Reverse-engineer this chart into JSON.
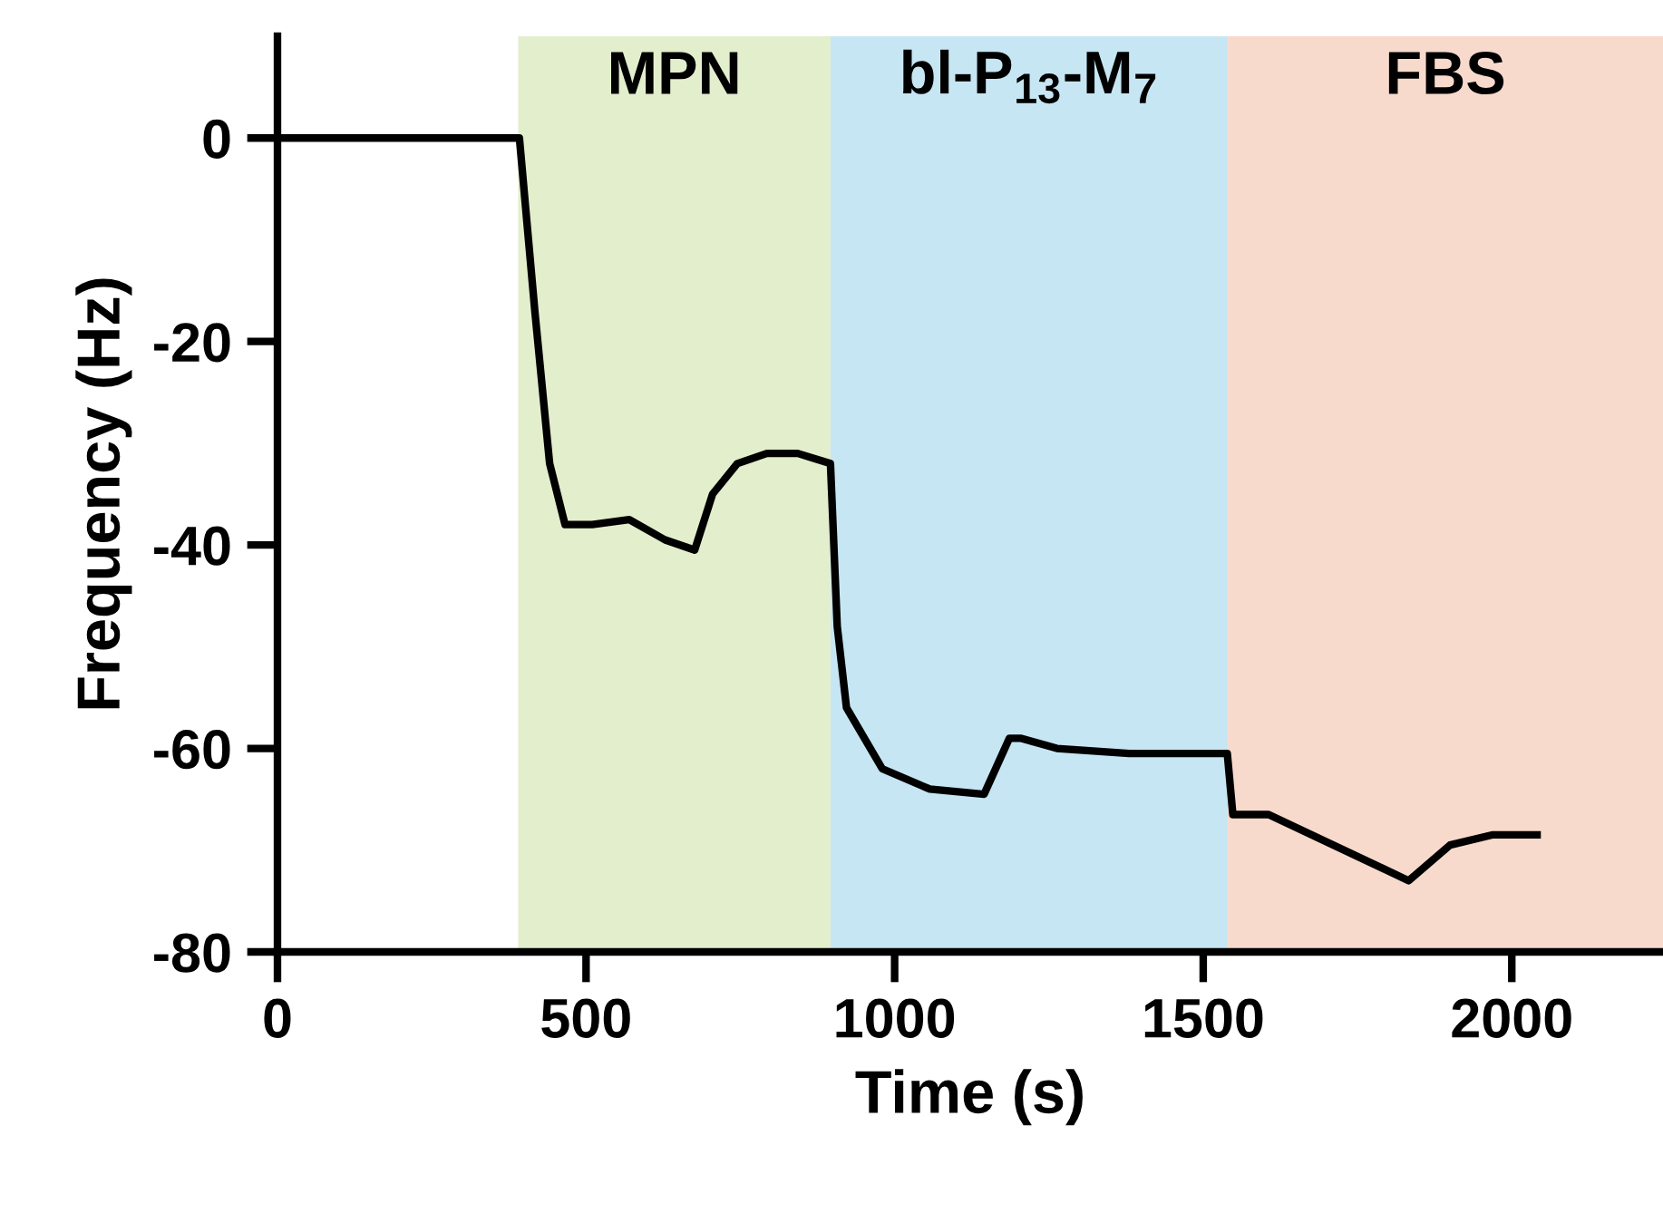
{
  "chart_data": {
    "type": "line",
    "xlabel": "Time (s)",
    "ylabel": "Frequency (Hz)",
    "series": [
      {
        "color": "#000000",
        "x": [
          6,
          200,
          382,
          392,
          417,
          441,
          466,
          510,
          570,
          628,
          676,
          705,
          745,
          793,
          843,
          896,
          907,
          922,
          980,
          1057,
          1145,
          1186,
          1204,
          1263,
          1380,
          1527,
          1539,
          1548,
          1606,
          1833,
          1900,
          1968,
          2041
        ],
        "values": [
          0,
          0,
          0,
          0,
          -17,
          -32,
          -38,
          -38,
          -37.5,
          -39.5,
          -40.5,
          -35,
          -32,
          -31,
          -31,
          -32,
          -48,
          -56,
          -62,
          -64,
          -64.5,
          -59,
          -59,
          -60,
          -60.5,
          -60.5,
          -60.5,
          -66.5,
          -66.5,
          -73,
          -69.5,
          -68.5,
          -68.5
        ]
      }
    ],
    "bands": [
      {
        "axis": "x",
        "from": 390,
        "to": 896,
        "label": "MPN",
        "color": "#e3eecd"
      },
      {
        "axis": "x",
        "from": 896,
        "to": 1540,
        "label": "bl-P$_{13}$-M$_{7}$",
        "color": "#c7e6f3"
      },
      {
        "axis": "x",
        "from": 1540,
        "to": 2245,
        "label": "FBS",
        "color": "#f8dacd"
      }
    ],
    "xlim": [
      0,
      2245
    ],
    "xticks": [
      0,
      500,
      1000,
      1500,
      2000
    ],
    "ylim": [
      -80,
      10
    ],
    "yticks": [
      0,
      -20,
      -40,
      -60,
      -80
    ],
    "grid": false,
    "legend": false,
    "marker": "none",
    "line_style": "solid"
  }
}
